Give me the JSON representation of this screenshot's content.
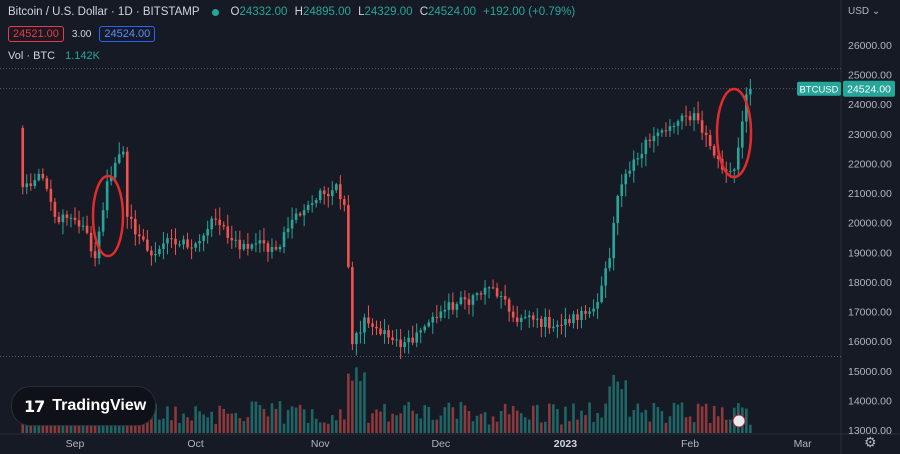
{
  "header": {
    "title": "Bitcoin / U.S. Dollar · 1D · BITSTAMP",
    "ohlc": {
      "o_key": "O",
      "o": "24332.00",
      "h_key": "H",
      "h": "24895.00",
      "l_key": "L",
      "l": "24329.00",
      "c_key": "C",
      "c": "24524.00",
      "change": "+192.00 (+0.79%)"
    },
    "sell_price": "24521.00",
    "spread": "3.00",
    "buy_price": "24524.00",
    "volume_label": "Vol · BTC",
    "volume_value": "1.142K"
  },
  "currency": "USD",
  "price_label": {
    "symbol": "BTCUSD",
    "price": "24524.00"
  },
  "logo_text": "TradingView",
  "colors": {
    "bg": "#161a25",
    "up": "#26a69a",
    "down": "#ef5350",
    "annotation": "#e32b2b",
    "price_label": "#26a69a"
  },
  "chart_data": {
    "type": "candlestick",
    "y_axis": {
      "min": 13000,
      "max": 26000,
      "ticks": [
        26000,
        25000,
        24000,
        23000,
        22000,
        21000,
        20000,
        19000,
        18000,
        17000,
        16000,
        15000,
        14000,
        13000
      ],
      "tick_labels": [
        "26000.00",
        "25000.00",
        "24000.00",
        "23000.00",
        "22000.00",
        "21000.00",
        "20000.00",
        "19000.00",
        "18000.00",
        "17000.00",
        "16000.00",
        "15000.00",
        "14000.00",
        "13000.00"
      ]
    },
    "x_axis": {
      "labels": [
        "Sep",
        "Oct",
        "Nov",
        "Dec",
        "2023",
        "Feb",
        "Mar"
      ]
    },
    "reference_lines": [
      25200,
      24524,
      15480
    ],
    "anchors": [
      [
        "2022-08-18",
        23200
      ],
      [
        "2022-08-19",
        21200
      ],
      [
        "2022-08-24",
        21500
      ],
      [
        "2022-08-27",
        20200
      ],
      [
        "2022-09-03",
        19900
      ],
      [
        "2022-09-06",
        18800
      ],
      [
        "2022-09-09",
        21400
      ],
      [
        "2022-09-13",
        22400
      ],
      [
        "2022-09-14",
        20200
      ],
      [
        "2022-09-20",
        18900
      ],
      [
        "2022-09-23",
        19300
      ],
      [
        "2022-10-01",
        19300
      ],
      [
        "2022-10-06",
        20100
      ],
      [
        "2022-10-12",
        19100
      ],
      [
        "2022-10-16",
        19300
      ],
      [
        "2022-10-21",
        19100
      ],
      [
        "2022-10-25",
        20100
      ],
      [
        "2022-10-29",
        20600
      ],
      [
        "2022-11-05",
        21300
      ],
      [
        "2022-11-07",
        20600
      ],
      [
        "2022-11-08",
        18500
      ],
      [
        "2022-11-09",
        15900
      ],
      [
        "2022-11-12",
        16800
      ],
      [
        "2022-11-21",
        15800
      ],
      [
        "2022-11-27",
        16500
      ],
      [
        "2022-12-01",
        17000
      ],
      [
        "2022-12-14",
        17800
      ],
      [
        "2022-12-19",
        16800
      ],
      [
        "2022-12-31",
        16550
      ],
      [
        "2023-01-08",
        17100
      ],
      [
        "2023-01-12",
        18800
      ],
      [
        "2023-01-14",
        20900
      ],
      [
        "2023-01-21",
        22800
      ],
      [
        "2023-01-26",
        23100
      ],
      [
        "2023-02-02",
        23700
      ],
      [
        "2023-02-09",
        21800
      ],
      [
        "2023-02-12",
        21800
      ],
      [
        "2023-02-15",
        24332
      ],
      [
        "2023-02-16",
        24524
      ]
    ],
    "volume_max_label": null
  }
}
